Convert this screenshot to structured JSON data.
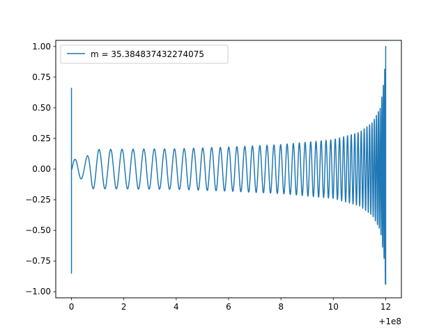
{
  "chart_data": {
    "type": "line",
    "title": "",
    "xlabel": "",
    "ylabel": "",
    "offset_label": "+1e8",
    "xlim": [
      -0.6,
      12.6
    ],
    "ylim": [
      -1.05,
      1.05
    ],
    "xticks": [
      0,
      2,
      4,
      6,
      8,
      10,
      12
    ],
    "xtick_labels": [
      "0",
      "2",
      "4",
      "6",
      "8",
      "10",
      "12"
    ],
    "yticks": [
      1.0,
      0.75,
      0.5,
      0.25,
      0.0,
      -0.25,
      -0.5,
      -0.75,
      -1.0
    ],
    "ytick_labels": [
      "1.00",
      "0.75",
      "0.50",
      "0.25",
      "0.00",
      "−0.25",
      "−0.50",
      "−0.75",
      "−1.00"
    ],
    "grid": false,
    "legend": {
      "position": "upper-left",
      "entries": [
        "m = 35.384837432274075"
      ]
    },
    "series": [
      {
        "name": "m = 35.384837432274075",
        "color": "#1f77b4",
        "style": "oscillating waveform (chirp): brief spike at start, steady oscillation, growing amplitude and frequency toward end",
        "x_range": [
          0,
          12
        ],
        "initial_spike": {
          "x": 0.0,
          "max": 0.66,
          "min": -0.85
        },
        "envelope": [
          {
            "x": 0.5,
            "amp": 0.08
          },
          {
            "x": 0.8,
            "amp": 0.16
          },
          {
            "x": 4.0,
            "amp": 0.165
          },
          {
            "x": 6.0,
            "amp": 0.18
          },
          {
            "x": 8.0,
            "amp": 0.2
          },
          {
            "x": 9.0,
            "amp": 0.22
          },
          {
            "x": 10.0,
            "amp": 0.24
          },
          {
            "x": 11.0,
            "amp": 0.3
          },
          {
            "x": 11.5,
            "amp": 0.38
          },
          {
            "x": 11.8,
            "amp": 0.5
          },
          {
            "x": 11.95,
            "amp": 0.75
          },
          {
            "x": 12.0,
            "amp": 1.0
          }
        ],
        "final_spike": {
          "x": 12.0,
          "max": 1.0,
          "min": -0.94
        }
      }
    ]
  }
}
